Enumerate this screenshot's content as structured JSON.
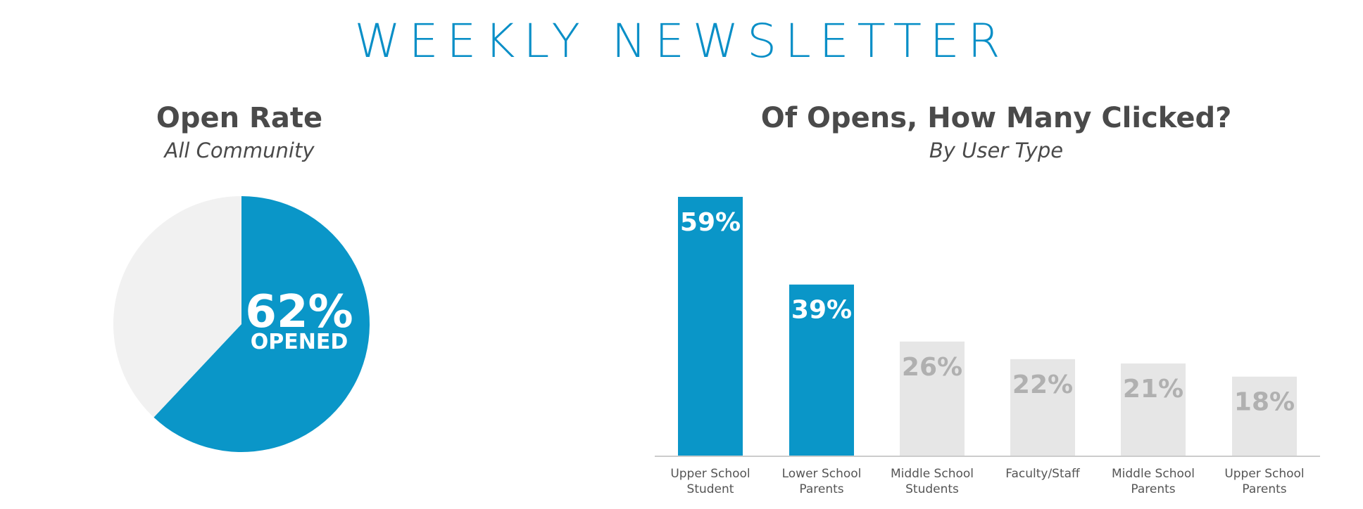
{
  "header": {
    "title": "WEEKLY NEWSLETTER"
  },
  "colors": {
    "accent": "#0a96c8",
    "muted": "#e6e6e6",
    "muted_text": "#b0b0b0",
    "pie_rest": "#f1f1f1",
    "axis": "#cccccc"
  },
  "chart_data": [
    {
      "type": "pie",
      "title": "Open Rate",
      "subtitle": "All Community",
      "slices": [
        {
          "label": "OPENED",
          "value": 62,
          "value_label": "62%",
          "color": "#0a96c8"
        },
        {
          "label": "",
          "value": 38,
          "color": "#f1f1f1"
        }
      ]
    },
    {
      "type": "bar",
      "title": "Of Opens, How Many Clicked?",
      "subtitle": "By User Type",
      "categories": [
        [
          "Upper School",
          "Student"
        ],
        [
          "Lower School",
          "Parents"
        ],
        [
          "Middle School",
          "Students"
        ],
        [
          "Faculty/Staff"
        ],
        [
          "Middle School",
          "Parents"
        ],
        [
          "Upper School",
          "Parents"
        ]
      ],
      "values": [
        59,
        39,
        26,
        22,
        21,
        18
      ],
      "value_labels": [
        "59%",
        "39%",
        "26%",
        "22%",
        "21%",
        "18%"
      ],
      "highlighted": [
        true,
        true,
        false,
        false,
        false,
        false
      ],
      "ylim": [
        0,
        59
      ],
      "grid": false,
      "legend": "none"
    }
  ]
}
